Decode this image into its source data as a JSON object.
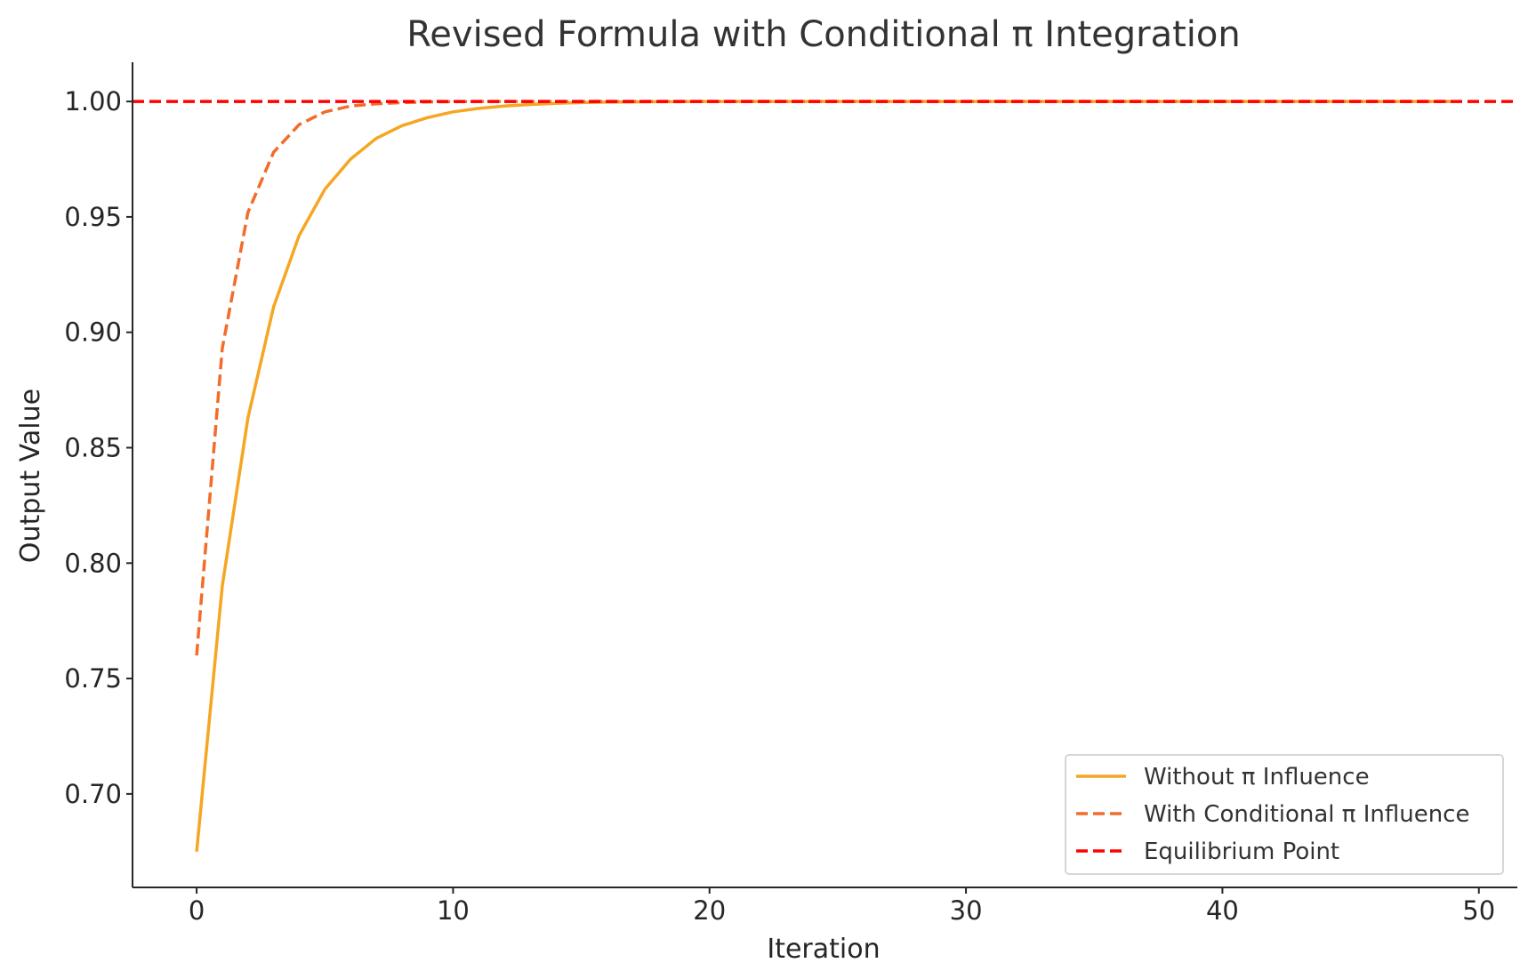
{
  "chart_data": {
    "type": "line",
    "title": "Revised Formula with Conditional π Integration",
    "xlabel": "Iteration",
    "ylabel": "Output Value",
    "xlim": [
      -2.5,
      51.5
    ],
    "ylim": [
      0.6595,
      1.017
    ],
    "xticks": [
      0,
      10,
      20,
      30,
      40,
      50
    ],
    "xtick_labels": [
      "0",
      "10",
      "20",
      "30",
      "40",
      "50"
    ],
    "yticks": [
      0.7,
      0.75,
      0.8,
      0.85,
      0.9,
      0.95,
      1.0
    ],
    "ytick_labels": [
      "0.70",
      "0.75",
      "0.80",
      "0.85",
      "0.90",
      "0.95",
      "1.00"
    ],
    "grid": false,
    "legend_position": "bottom-right",
    "x": [
      0,
      1,
      2,
      3,
      4,
      5,
      6,
      7,
      8,
      9,
      10,
      11,
      12,
      13,
      14,
      15,
      16,
      17,
      18,
      19,
      20,
      21,
      22,
      23,
      24,
      25,
      26,
      27,
      28,
      29,
      30,
      31,
      32,
      33,
      34,
      35,
      36,
      37,
      38,
      39,
      40,
      41,
      42,
      43,
      44,
      45,
      46,
      47,
      48,
      49
    ],
    "series": [
      {
        "name": "Without π Influence",
        "color": "#f5a623",
        "style": "solid",
        "values": [
          0.675,
          0.79,
          0.863,
          0.911,
          0.942,
          0.962,
          0.975,
          0.984,
          0.9895,
          0.993,
          0.9955,
          0.997,
          0.998,
          0.9987,
          0.9992,
          0.9995,
          0.9997,
          0.9998,
          0.9999,
          0.99995,
          1.0,
          1.0,
          1.0,
          1.0,
          1.0,
          1.0,
          1.0,
          1.0,
          1.0,
          1.0,
          1.0,
          1.0,
          1.0,
          1.0,
          1.0,
          1.0,
          1.0,
          1.0,
          1.0,
          1.0,
          1.0,
          1.0,
          1.0,
          1.0,
          1.0,
          1.0,
          1.0,
          1.0,
          1.0,
          1.0
        ]
      },
      {
        "name": "With Conditional π Influence",
        "color": "#f26c2b",
        "style": "dashed",
        "values": [
          0.76,
          0.893,
          0.952,
          0.978,
          0.99,
          0.9955,
          0.998,
          0.999,
          0.9995,
          0.9998,
          0.9999,
          1.0,
          1.0,
          1.0,
          1.0,
          1.0,
          1.0,
          1.0,
          1.0,
          1.0,
          1.0,
          1.0,
          1.0,
          1.0,
          1.0,
          1.0,
          1.0,
          1.0,
          1.0,
          1.0,
          1.0,
          1.0,
          1.0,
          1.0,
          1.0,
          1.0,
          1.0,
          1.0,
          1.0,
          1.0,
          1.0,
          1.0,
          1.0,
          1.0,
          1.0,
          1.0,
          1.0,
          1.0,
          1.0,
          1.0
        ]
      }
    ],
    "reference_lines": [
      {
        "name": "Equilibrium Point",
        "y": 1.0,
        "color": "#ff0000",
        "style": "dashed"
      }
    ]
  }
}
